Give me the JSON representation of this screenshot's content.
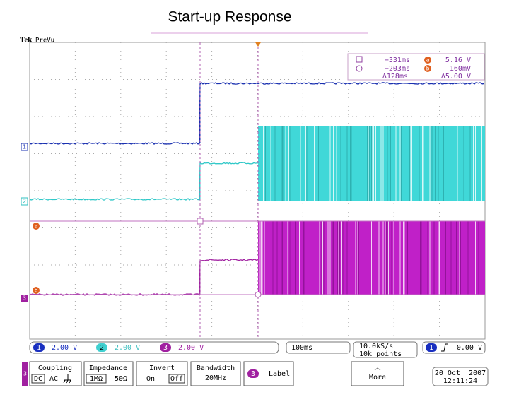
{
  "title": "Start-up Response",
  "header": {
    "brand": "Tek",
    "mode": "PreVu"
  },
  "cursors": {
    "t1": "−331ms",
    "v1": "5.16 V",
    "t2": "−203ms",
    "v2": "160mV",
    "dt": "Δ128ms",
    "dv": "Δ5.00 V"
  },
  "markers": {
    "ch1": "1",
    "ch2": "2",
    "ch3": "3",
    "a": "a",
    "b": "b"
  },
  "status": {
    "channels": [
      {
        "id": "1",
        "scale": "2.00 V"
      },
      {
        "id": "2",
        "scale": "2.00 V"
      },
      {
        "id": "3",
        "scale": "2.00 V"
      }
    ],
    "timebase": "100ms",
    "sample_rate": "10.0kS/s",
    "record_length": "10k points",
    "trigger": {
      "source": "1",
      "level": "0.00 V"
    }
  },
  "menu": {
    "channel": "3",
    "coupling": {
      "label": "Coupling",
      "options": [
        "DC",
        "AC"
      ]
    },
    "impedance": {
      "label": "Impedance",
      "options": [
        "1MΩ",
        "50Ω"
      ]
    },
    "invert": {
      "label": "Invert",
      "options": [
        "On",
        "Off"
      ]
    },
    "bandwidth": {
      "label": "Bandwidth",
      "value": "20MHz"
    },
    "label": {
      "icon": "3",
      "text": "Label"
    },
    "more": "More"
  },
  "datetime": {
    "date": "20 Oct  2007",
    "time": "12:11:24"
  }
}
